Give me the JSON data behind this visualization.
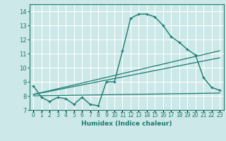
{
  "xlabel": "Humidex (Indice chaleur)",
  "ylabel": "",
  "background_color": "#cce8e8",
  "grid_color": "#ffffff",
  "line_color": "#1a7a6e",
  "xlim": [
    -0.5,
    23.5
  ],
  "ylim": [
    7,
    14.5
  ],
  "x_ticks": [
    0,
    1,
    2,
    3,
    4,
    5,
    6,
    7,
    8,
    9,
    10,
    11,
    12,
    13,
    14,
    15,
    16,
    17,
    18,
    19,
    20,
    21,
    22,
    23
  ],
  "y_ticks": [
    7,
    8,
    9,
    10,
    11,
    12,
    13,
    14
  ],
  "curve1_x": [
    0,
    1,
    2,
    3,
    4,
    5,
    6,
    7,
    8,
    9,
    10,
    11,
    12,
    13,
    14,
    15,
    16,
    17,
    18,
    19,
    20,
    21,
    22,
    23
  ],
  "curve1_y": [
    8.7,
    7.9,
    7.6,
    7.9,
    7.8,
    7.4,
    7.9,
    7.4,
    7.3,
    9.0,
    9.0,
    11.2,
    13.5,
    13.8,
    13.8,
    13.6,
    13.0,
    12.2,
    11.8,
    11.3,
    10.9,
    9.3,
    8.6,
    8.4
  ],
  "line1_x": [
    0,
    23
  ],
  "line1_y": [
    8.0,
    8.2
  ],
  "line2_x": [
    0,
    23
  ],
  "line2_y": [
    8.1,
    11.2
  ],
  "line3_x": [
    0,
    23
  ],
  "line3_y": [
    8.1,
    10.7
  ]
}
